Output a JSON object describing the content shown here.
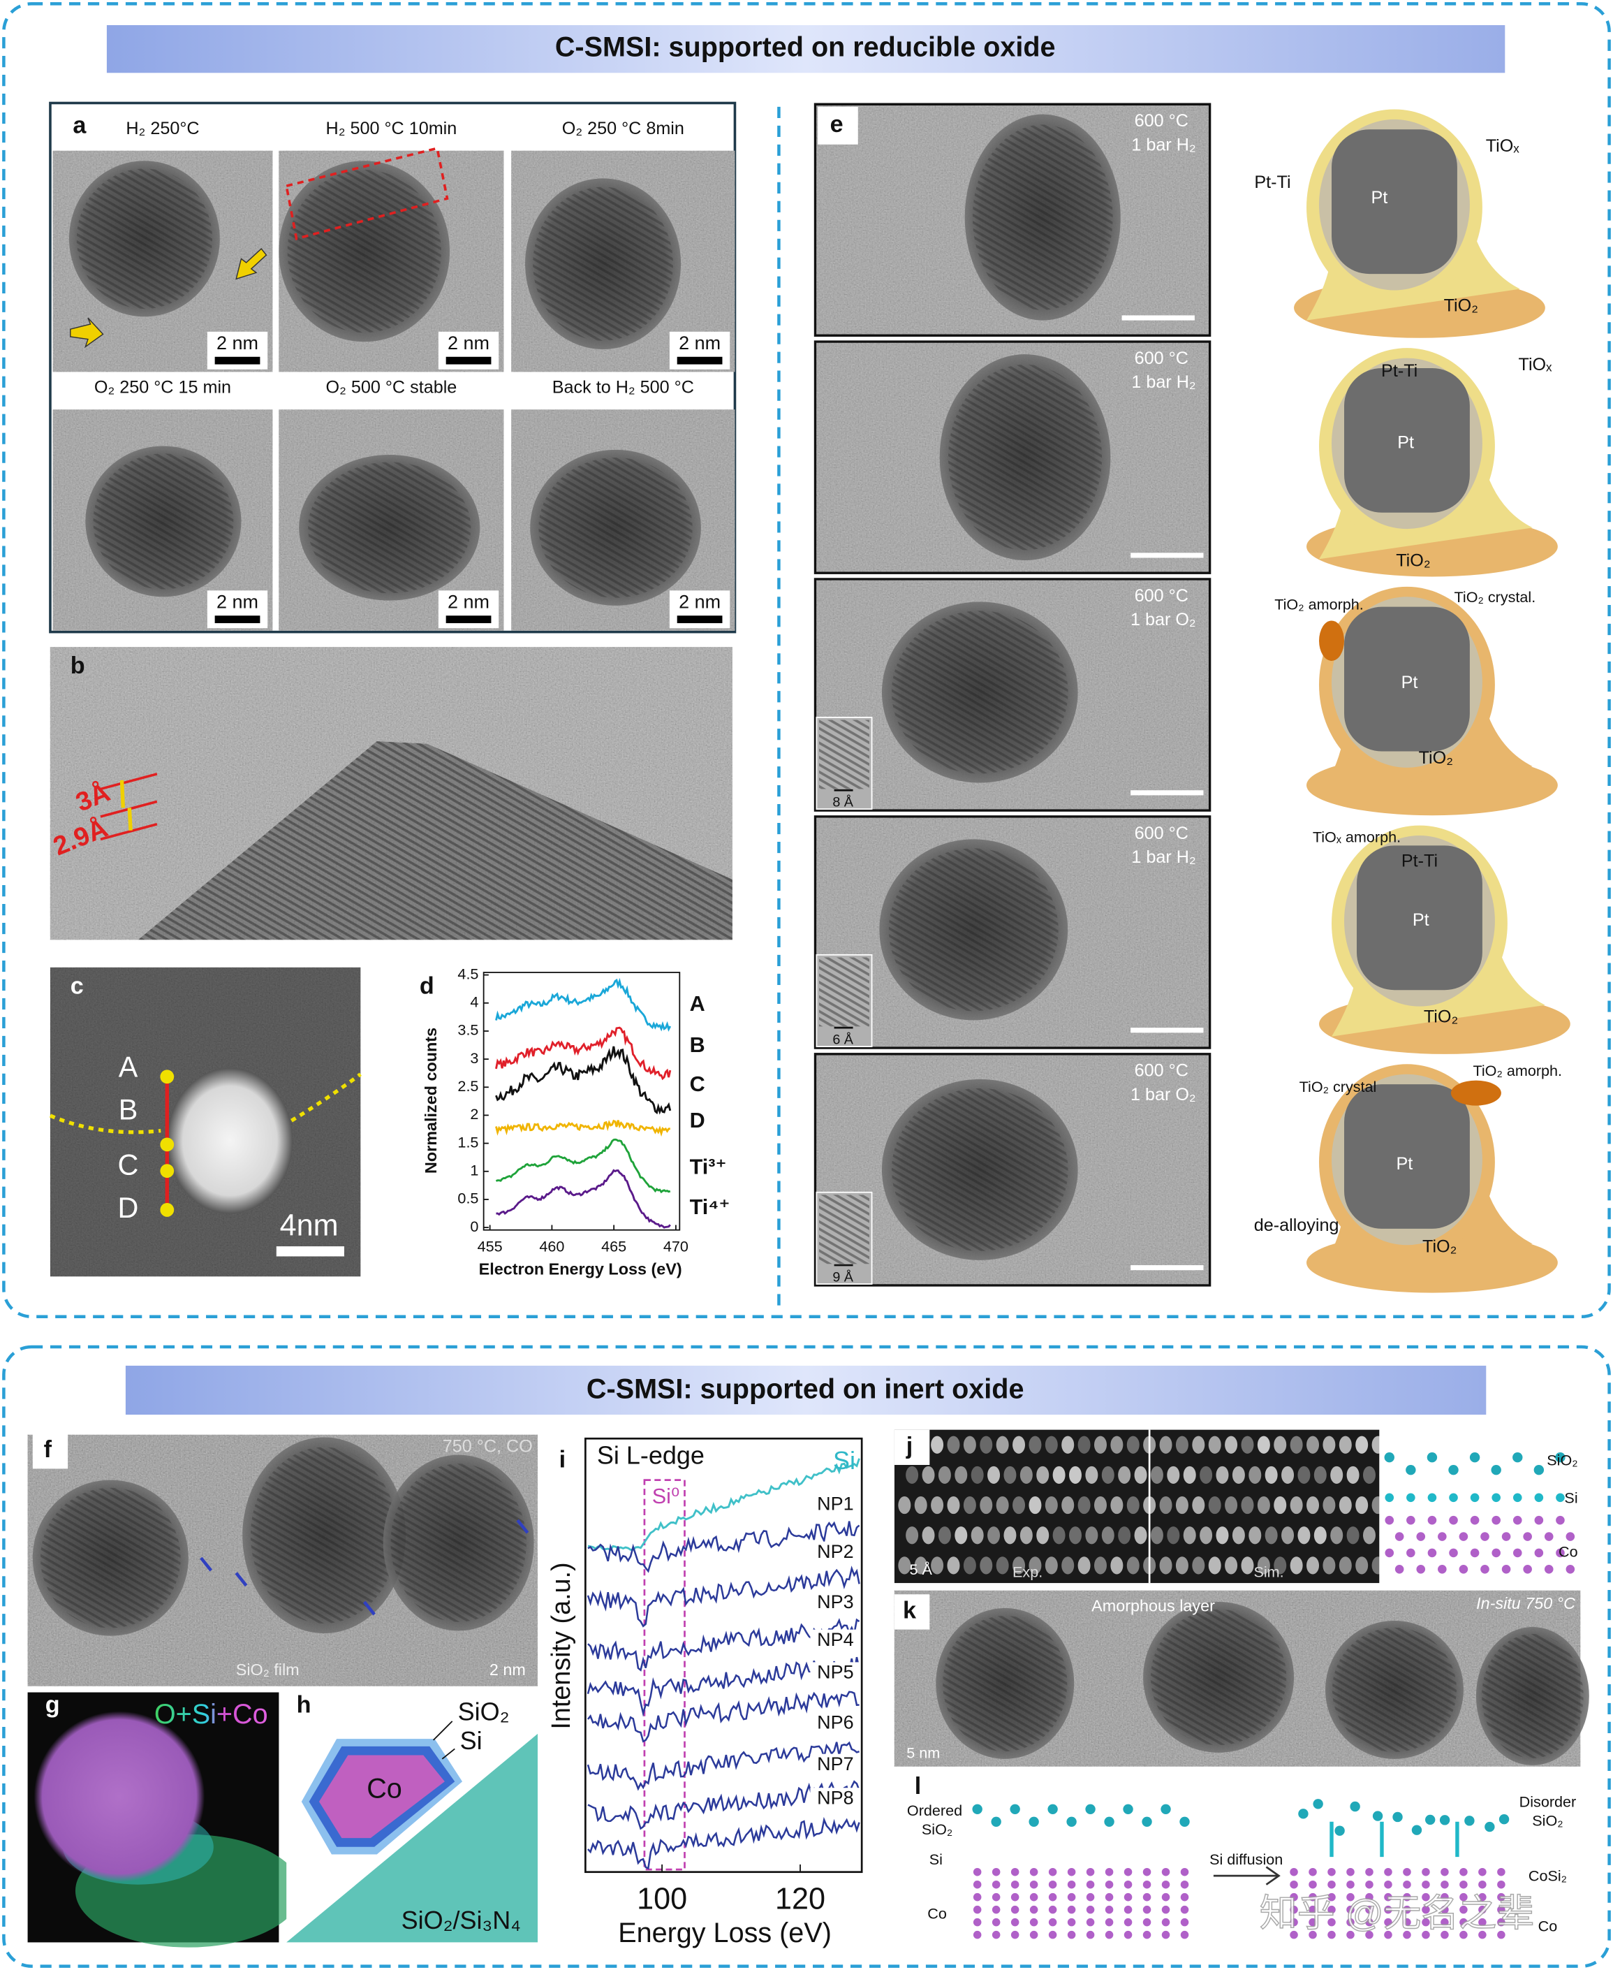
{
  "top": {
    "banner": "C-SMSI: supported on reducible oxide"
  },
  "panel_a": {
    "label": "a",
    "conditions": [
      "H₂ 250°C",
      "H₂ 500 °C 10min",
      "O₂ 250 °C 8min",
      "O₂ 250 °C 15 min",
      "O₂ 500 °C stable",
      "Back to H₂ 500 °C"
    ],
    "scale_bars": [
      "2 nm",
      "2 nm",
      "2 nm",
      "2 nm",
      "2 nm",
      "2 nm"
    ]
  },
  "panel_b": {
    "label": "b",
    "spacings": [
      "3Å",
      "2.9Å"
    ]
  },
  "panel_c": {
    "label": "c",
    "points": [
      "A",
      "B",
      "C",
      "D"
    ],
    "scale_bar": "4nm"
  },
  "panel_d": {
    "label": "d",
    "y_label": "Normalized counts",
    "x_label": "Electron Energy Loss (eV)",
    "y_ticks": [
      "0",
      "0.5",
      "1",
      "1.5",
      "2",
      "2.5",
      "3",
      "3.5",
      "4",
      "4.5"
    ],
    "x_ticks": [
      "455",
      "460",
      "465",
      "470"
    ],
    "traces": [
      "A",
      "B",
      "C",
      "D",
      "Ti³⁺",
      "Ti⁴⁺"
    ]
  },
  "panel_e": {
    "label": "e",
    "frames": [
      {
        "temperature": "600 °C",
        "gas": "1 bar H₂"
      },
      {
        "temperature": "600 °C",
        "gas": "1 bar H₂"
      },
      {
        "temperature": "600 °C",
        "gas": "1 bar O₂"
      },
      {
        "temperature": "600 °C",
        "gas": "1 bar H₂"
      },
      {
        "temperature": "600 °C",
        "gas": "1 bar O₂"
      }
    ],
    "insets": [
      "8 Å",
      "6 Å",
      "9 Å"
    ]
  },
  "schematics": [
    [
      "Pt-Ti",
      "TiOₓ",
      "Pt",
      "TiO₂"
    ],
    [
      "Pt-Ti",
      "TiOₓ",
      "Pt",
      "TiO₂"
    ],
    [
      "TiO₂ amorph.",
      "TiO₂ crystal.",
      "Pt",
      "TiO₂"
    ],
    [
      "TiOₓ amorph.",
      "Pt-Ti",
      "Pt",
      "TiO₂"
    ],
    [
      "TiO₂ crystal",
      "TiO₂ amorph.",
      "Pt",
      "de-alloying",
      "TiO₂"
    ]
  ],
  "bottom": {
    "banner": "C-SMSI: supported on inert oxide"
  },
  "panel_f": {
    "label": "f",
    "condition": "750 °C, CO",
    "film": "SiO₂ film",
    "scale_bar": "2 nm"
  },
  "panel_g": {
    "label": "g",
    "channels": "O+Si+Co"
  },
  "panel_h": {
    "label": "h",
    "layers": [
      "SiO₂",
      "Si",
      "Co"
    ],
    "support": "SiO₂/Si₃N₄"
  },
  "panel_i": {
    "label": "i",
    "title": "Si L-edge",
    "reference": "Si",
    "marker": "Si⁰",
    "traces": [
      "NP1",
      "NP2",
      "NP3",
      "NP4",
      "NP5",
      "NP6",
      "NP7",
      "NP8"
    ],
    "x_ticks": [
      "100",
      "120"
    ],
    "y_label": "Intensity (a.u.)",
    "x_label": "Energy Loss (eV)"
  },
  "panel_j": {
    "label": "j",
    "scale_bar": "5 Å",
    "exp": "Exp.",
    "sim": "Sim.",
    "layers": [
      "SiO₂",
      "Si",
      "Co"
    ]
  },
  "panel_k": {
    "label": "k",
    "layer": "Amorphous layer",
    "condition": "In-situ 750 °C",
    "scale_bar": "5 nm"
  },
  "panel_l": {
    "label": "l",
    "ordered": [
      "Ordered",
      "SiO₂"
    ],
    "si": "Si",
    "co_left": "Co",
    "arrow": "Si diffusion",
    "disorder": [
      "Disorder",
      "SiO₂"
    ],
    "cosi": "CoSi₂",
    "co_right": "Co"
  },
  "watermark": "知乎 @无名之辈"
}
